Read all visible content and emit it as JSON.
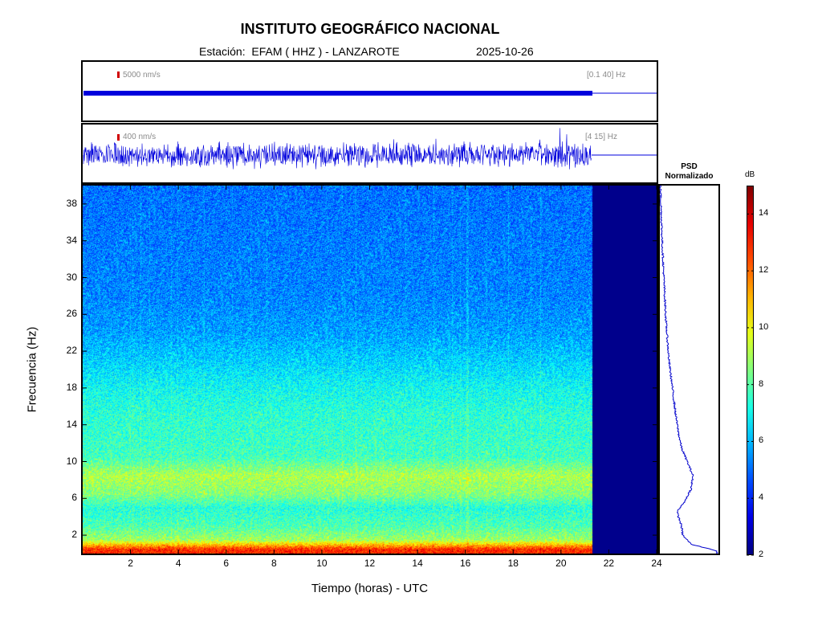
{
  "title": "INSTITUTO GEOGRÁFICO NACIONAL",
  "station_label": "Estación:  EFAM ( HHZ ) - LANZAROTE",
  "date": "2025-10-26",
  "traces": [
    {
      "scale": "5000 nm/s",
      "band": "[0.1 40] Hz"
    },
    {
      "scale": "400 nm/s",
      "band": "[4 15] Hz"
    }
  ],
  "psd_title_line1": "PSD",
  "psd_title_line2": "Normalizado",
  "colorbar": {
    "unit": "dB",
    "ticks": [
      "2",
      "4",
      "6",
      "8",
      "10",
      "12",
      "14"
    ],
    "range": [
      2,
      15
    ],
    "colormap": "jet"
  },
  "chart_data": {
    "type": "heatmap",
    "title": "INSTITUTO GEOGRÁFICO NACIONAL",
    "xlabel": "Tiempo (horas) - UTC",
    "ylabel": "Frecuencia  (Hz)",
    "xlim": [
      0,
      24
    ],
    "ylim": [
      0,
      40
    ],
    "x_ticks": [
      "2",
      "4",
      "6",
      "8",
      "10",
      "12",
      "14",
      "16",
      "18",
      "20",
      "22",
      "24"
    ],
    "y_ticks": [
      "2",
      "6",
      "10",
      "14",
      "18",
      "22",
      "26",
      "30",
      "34",
      "38"
    ],
    "data_end_hour": 21.3,
    "frequency_profile_db": [
      {
        "f": 0.5,
        "db": 13.5
      },
      {
        "f": 1.5,
        "db": 9.0
      },
      {
        "f": 3.0,
        "db": 7.8
      },
      {
        "f": 5.0,
        "db": 7.2
      },
      {
        "f": 6.5,
        "db": 8.6
      },
      {
        "f": 8.5,
        "db": 9.2
      },
      {
        "f": 10.5,
        "db": 7.6
      },
      {
        "f": 13.0,
        "db": 7.4
      },
      {
        "f": 15.0,
        "db": 7.3
      },
      {
        "f": 18.0,
        "db": 6.8
      },
      {
        "f": 21.0,
        "db": 6.0
      },
      {
        "f": 24.0,
        "db": 5.3
      },
      {
        "f": 28.0,
        "db": 4.9
      },
      {
        "f": 32.0,
        "db": 4.8
      },
      {
        "f": 36.0,
        "db": 4.7
      },
      {
        "f": 40.0,
        "db": 4.6
      }
    ],
    "psd_normalized": [
      {
        "f": 0.3,
        "v": 1.0
      },
      {
        "f": 1.0,
        "v": 0.55
      },
      {
        "f": 2.0,
        "v": 0.4
      },
      {
        "f": 3.0,
        "v": 0.38
      },
      {
        "f": 4.5,
        "v": 0.3
      },
      {
        "f": 5.5,
        "v": 0.42
      },
      {
        "f": 7.0,
        "v": 0.55
      },
      {
        "f": 8.5,
        "v": 0.58
      },
      {
        "f": 10.0,
        "v": 0.48
      },
      {
        "f": 11.5,
        "v": 0.38
      },
      {
        "f": 13.0,
        "v": 0.33
      },
      {
        "f": 15.0,
        "v": 0.28
      },
      {
        "f": 18.0,
        "v": 0.22
      },
      {
        "f": 21.0,
        "v": 0.16
      },
      {
        "f": 25.0,
        "v": 0.11
      },
      {
        "f": 30.0,
        "v": 0.07
      },
      {
        "f": 34.0,
        "v": 0.04
      },
      {
        "f": 38.0,
        "v": 0.02
      },
      {
        "f": 40.0,
        "v": 0.01
      }
    ]
  }
}
